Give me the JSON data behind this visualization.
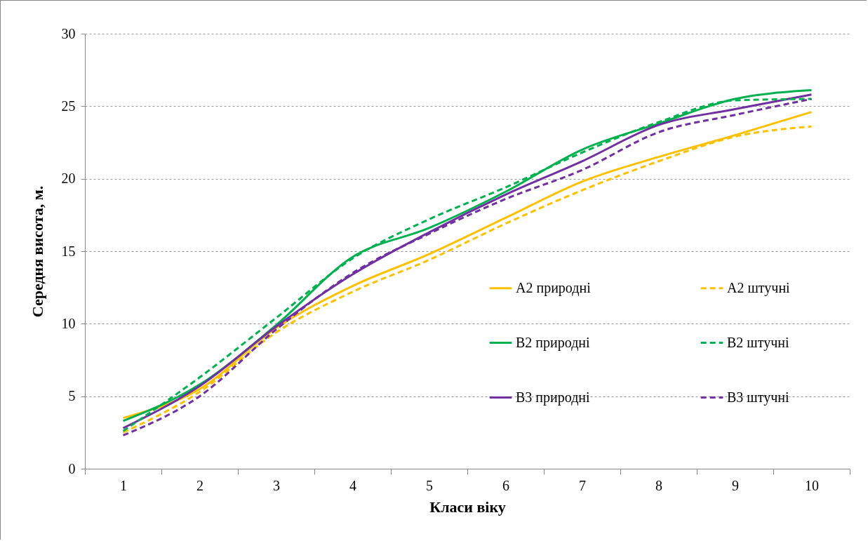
{
  "chart_data": {
    "type": "line",
    "xlabel": "Класи віку",
    "ylabel": "Середня висота, м.",
    "categories": [
      "1",
      "2",
      "3",
      "4",
      "5",
      "6",
      "7",
      "8",
      "9",
      "10"
    ],
    "ylim": [
      0,
      30
    ],
    "yticks": [
      0,
      5,
      10,
      15,
      20,
      25,
      30
    ],
    "grid": "y",
    "legend": "right",
    "marker": "none",
    "series": [
      {
        "name": "А2 природні",
        "color": "#ffc000",
        "line_style": "solid",
        "values": [
          3.5,
          5.5,
          9.7,
          12.6,
          14.8,
          17.3,
          19.8,
          21.5,
          23.0,
          24.6
        ]
      },
      {
        "name": "А2 штучні",
        "color": "#ffc000",
        "line_style": "dashed",
        "values": [
          2.5,
          5.3,
          9.4,
          12.2,
          14.4,
          16.9,
          19.2,
          21.2,
          22.9,
          23.6
        ]
      },
      {
        "name": "В2 природні",
        "color": "#00b050",
        "line_style": "solid",
        "values": [
          3.3,
          5.8,
          9.9,
          14.6,
          16.6,
          19.1,
          22.0,
          23.8,
          25.5,
          26.1
        ]
      },
      {
        "name": "В2 штучні",
        "color": "#00b050",
        "line_style": "dashed",
        "values": [
          2.6,
          6.3,
          10.4,
          14.5,
          17.2,
          19.4,
          21.8,
          23.9,
          25.4,
          25.5
        ]
      },
      {
        "name": "В3 природні",
        "color": "#7030a0",
        "line_style": "solid",
        "values": [
          2.8,
          5.7,
          9.8,
          13.4,
          16.3,
          18.9,
          21.2,
          23.7,
          24.8,
          25.8
        ]
      },
      {
        "name": "В3 штучні",
        "color": "#7030a0",
        "line_style": "dashed",
        "values": [
          2.3,
          5.0,
          9.6,
          13.5,
          16.2,
          18.6,
          20.6,
          23.2,
          24.4,
          25.5
        ]
      }
    ]
  }
}
